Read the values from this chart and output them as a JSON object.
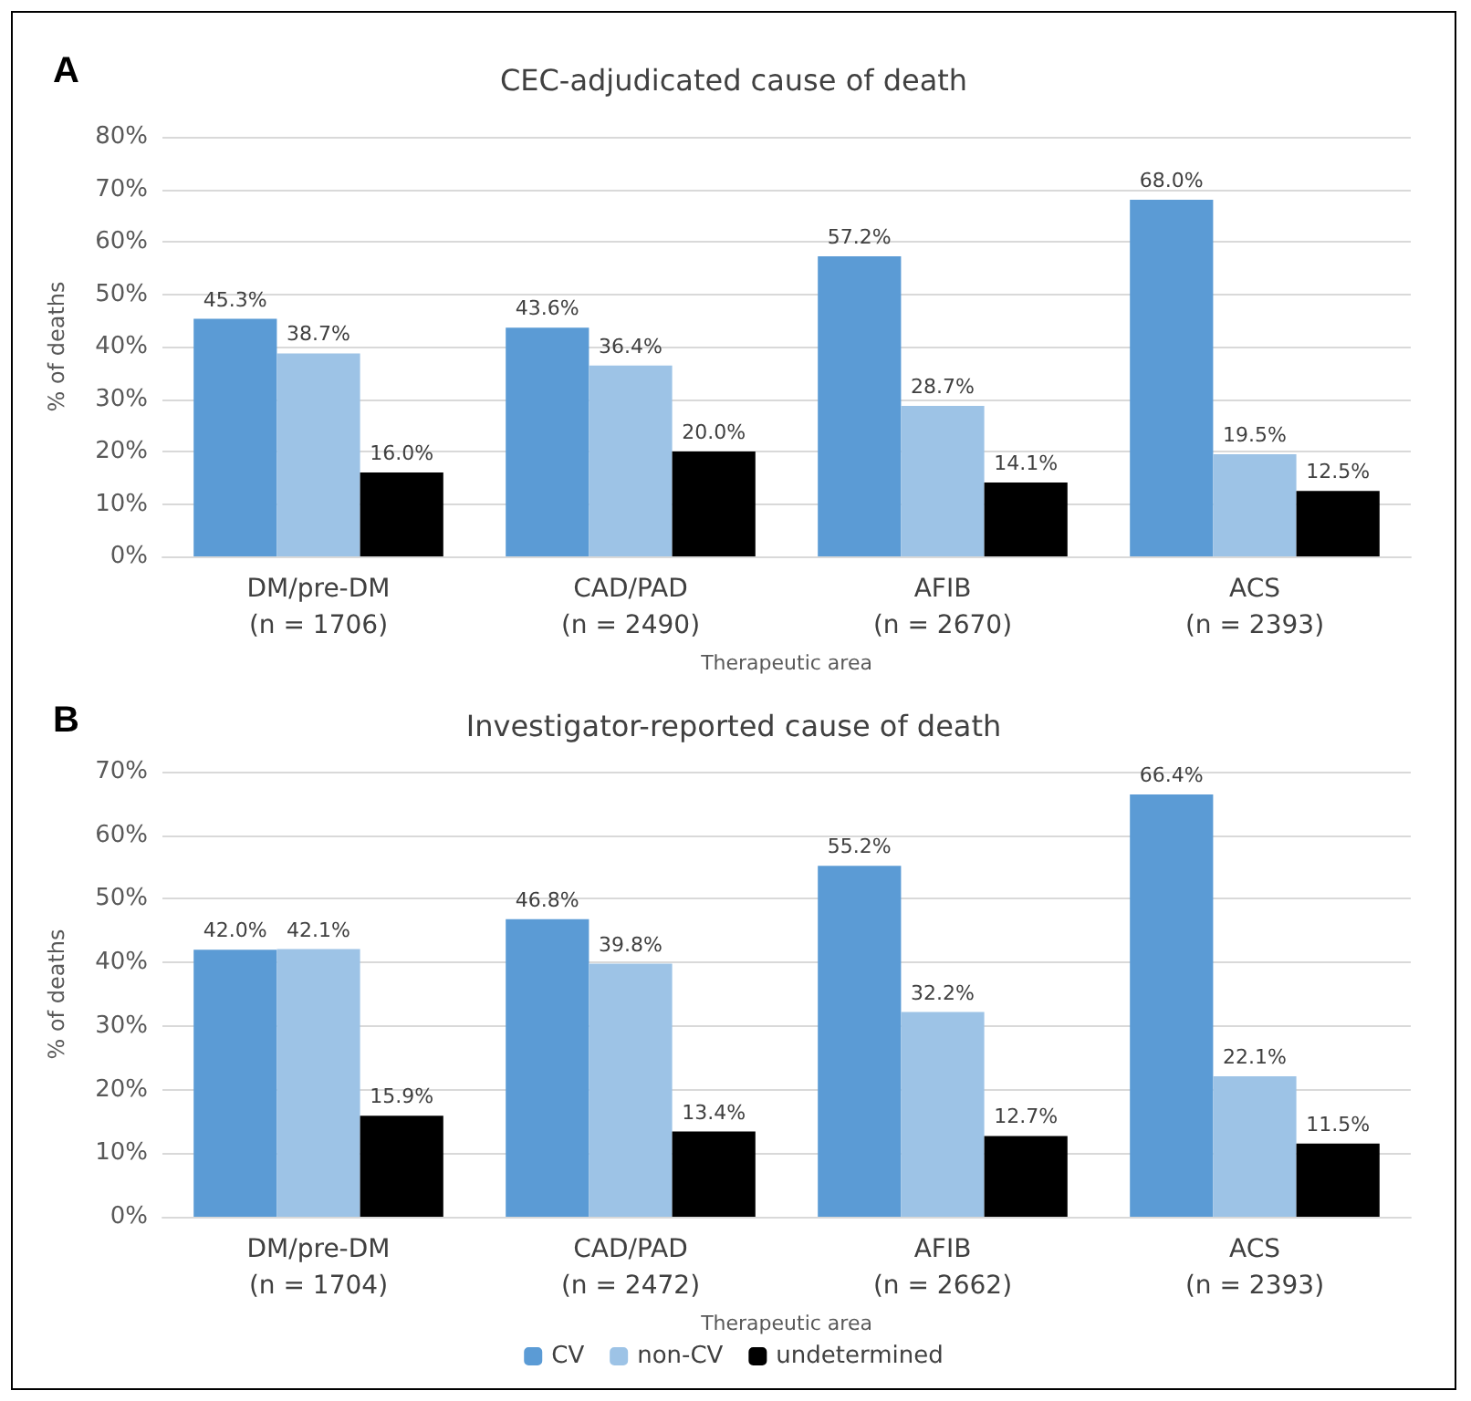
{
  "chart_data": [
    {
      "type": "bar",
      "title": "CEC-adjudicated cause of death",
      "annotations": [
        "A"
      ],
      "xlabel": "Therapeutic area",
      "ylabel": "% of deaths",
      "categories": [
        "DM/pre-DM\n(n = 1706)",
        "CAD/PAD\n(n = 2490)",
        "AFIB\n(n = 2670)",
        "ACS\n(n = 2393)"
      ],
      "series": [
        {
          "color": "#5b9bd5",
          "values": [
            45.3,
            43.6,
            57.2,
            68.0
          ],
          "value_labels": [
            "45.3%",
            "43.6%",
            "57.2%",
            "68.0%"
          ]
        },
        {
          "color": "#9dc3e6",
          "values": [
            38.7,
            36.4,
            28.7,
            19.5
          ],
          "value_labels": [
            "38.7%",
            "36.4%",
            "28.7%",
            "19.5%"
          ]
        },
        {
          "color": "#000000",
          "values": [
            16.0,
            20.0,
            14.1,
            12.5
          ],
          "value_labels": [
            "16.0%",
            "20.0%",
            "14.1%",
            "12.5%"
          ]
        }
      ],
      "ylim": [
        0,
        80
      ],
      "yticks": [
        {
          "value": 0,
          "label": "0%"
        },
        {
          "value": 10,
          "label": "10%"
        },
        {
          "value": 20,
          "label": "20%"
        },
        {
          "value": 30,
          "label": "30%"
        },
        {
          "value": 40,
          "label": "40%"
        },
        {
          "value": 50,
          "label": "50%"
        },
        {
          "value": 60,
          "label": "60%"
        },
        {
          "value": 70,
          "label": "70%"
        },
        {
          "value": 80,
          "label": "80%"
        }
      ],
      "grid": "y",
      "legend": false
    },
    {
      "type": "bar",
      "title": "Investigator-reported cause of death",
      "annotations": [
        "B"
      ],
      "xlabel": "Therapeutic area",
      "ylabel": "% of deaths",
      "categories": [
        "DM/pre-DM\n(n = 1704)",
        "CAD/PAD\n(n = 2472)",
        "AFIB\n(n = 2662)",
        "ACS\n(n = 2393)"
      ],
      "series": [
        {
          "name": "CV",
          "color": "#5b9bd5",
          "values": [
            42.0,
            46.8,
            55.2,
            66.4
          ],
          "value_labels": [
            "42.0%",
            "46.8%",
            "55.2%",
            "66.4%"
          ]
        },
        {
          "name": "non-CV",
          "color": "#9dc3e6",
          "values": [
            42.1,
            39.8,
            32.2,
            22.1
          ],
          "value_labels": [
            "42.1%",
            "39.8%",
            "32.2%",
            "22.1%"
          ]
        },
        {
          "name": "undetermined",
          "color": "#000000",
          "values": [
            15.9,
            13.4,
            12.7,
            11.5
          ],
          "value_labels": [
            "15.9%",
            "13.4%",
            "12.7%",
            "11.5%"
          ]
        }
      ],
      "ylim": [
        0,
        70
      ],
      "yticks": [
        {
          "value": 0,
          "label": "0%"
        },
        {
          "value": 10,
          "label": "10%"
        },
        {
          "value": 20,
          "label": "20%"
        },
        {
          "value": 30,
          "label": "30%"
        },
        {
          "value": 40,
          "label": "40%"
        },
        {
          "value": 50,
          "label": "50%"
        },
        {
          "value": 60,
          "label": "60%"
        },
        {
          "value": 70,
          "label": "70%"
        }
      ],
      "grid": "y",
      "legend": "bottom"
    }
  ]
}
